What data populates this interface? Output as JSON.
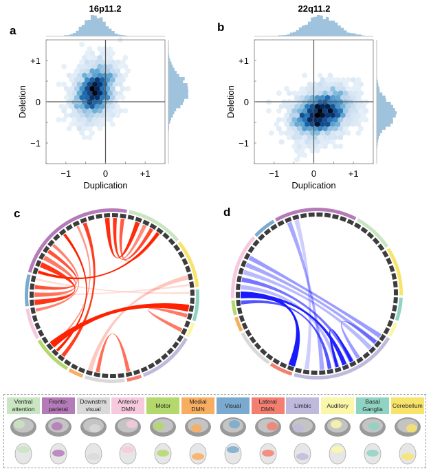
{
  "panel_labels": {
    "a": "a",
    "b": "b",
    "c": "c",
    "d": "d"
  },
  "chart_data": [
    {
      "type": "hexbin",
      "panel": "a",
      "title": "16p11.2",
      "xlabel": "Duplication",
      "ylabel": "Deletion",
      "xlim": [
        -1.5,
        1.5
      ],
      "ylim": [
        -1.5,
        1.5
      ],
      "xticks": [
        {
          "value": -1,
          "label": "−1"
        },
        {
          "value": 0,
          "label": "0"
        },
        {
          "value": 1,
          "label": "+1"
        }
      ],
      "yticks": [
        {
          "value": 1,
          "label": "+1"
        },
        {
          "value": 0,
          "label": "0"
        },
        {
          "value": -1,
          "label": "−1"
        }
      ],
      "distribution": {
        "n": 3000,
        "mean_x": -0.28,
        "mean_y": 0.27,
        "sd_x": 0.26,
        "sd_y": 0.34,
        "corr": 0.25
      },
      "marginal_histograms": true
    },
    {
      "type": "hexbin",
      "panel": "b",
      "title": "22q11.2",
      "xlabel": "Duplication",
      "ylabel": "Deletion",
      "xlim": [
        -1.5,
        1.5
      ],
      "ylim": [
        -1.5,
        1.5
      ],
      "xticks": [
        {
          "value": -1,
          "label": "−1"
        },
        {
          "value": 0,
          "label": "0"
        },
        {
          "value": 1,
          "label": "+1"
        }
      ],
      "yticks": [
        {
          "value": 1,
          "label": "+1"
        },
        {
          "value": 0,
          "label": "0"
        },
        {
          "value": -1,
          "label": "−1"
        }
      ],
      "distribution": {
        "n": 3000,
        "mean_x": 0.2,
        "mean_y": -0.27,
        "sd_x": 0.38,
        "sd_y": 0.3,
        "corr": 0.28
      },
      "marginal_histograms": true
    },
    {
      "type": "chord",
      "panel": "c",
      "color": "#ff2200",
      "networks": [
        {
          "name": "Fronto-parietal",
          "nodes": 15,
          "color": "#b57ab8"
        },
        {
          "name": "Ventral attention",
          "nodes": 7,
          "color": "#c9e5c1"
        },
        {
          "name": "Cerebellum",
          "nodes": 6,
          "color": "#f8e46a"
        },
        {
          "name": "Basal Ganglia",
          "nodes": 4,
          "color": "#8fd3c3"
        },
        {
          "name": "Auditory",
          "nodes": 2,
          "color": "#fbf7a8"
        },
        {
          "name": "Limbic",
          "nodes": 7,
          "color": "#bfbadb"
        },
        {
          "name": "Lateral DMN",
          "nodes": 2,
          "color": "#f47f71"
        },
        {
          "name": "Downstrm visual",
          "nodes": 5,
          "color": "#d9d9d9"
        },
        {
          "name": "Medial DMN",
          "nodes": 2,
          "color": "#f8ae60"
        },
        {
          "name": "Motor",
          "nodes": 5,
          "color": "#b3d86c"
        },
        {
          "name": "Anterior DMN",
          "nodes": 4,
          "color": "#f7c9de"
        },
        {
          "name": "Visual",
          "nodes": 4,
          "color": "#7aaacf"
        }
      ],
      "chords": [
        {
          "from": 12,
          "to": 16,
          "strength": 0.95,
          "width": 0.6
        },
        {
          "from": 13,
          "to": 17,
          "strength": 0.45,
          "width": 0.5
        },
        {
          "from": 13,
          "to": 18,
          "strength": 0.8,
          "width": 0.5
        },
        {
          "from": 14,
          "to": 19,
          "strength": 0.7,
          "width": 0.5
        },
        {
          "from": 0,
          "to": 19,
          "strength": 1.0,
          "width": 0.4
        },
        {
          "from": 6,
          "to": 52,
          "strength": 1.0,
          "width": 0.35
        },
        {
          "from": 9,
          "to": 51,
          "strength": 0.85,
          "width": 0.5
        },
        {
          "from": 8,
          "to": 53,
          "strength": 0.4,
          "width": 0.3
        },
        {
          "from": 53,
          "to": 30,
          "strength": 1.0,
          "width": 0.9
        },
        {
          "from": 47,
          "to": 26,
          "strength": 0.15,
          "width": 0.6
        },
        {
          "from": 46,
          "to": 42,
          "strength": 0.6,
          "width": 0.5
        },
        {
          "from": 31,
          "to": 33,
          "strength": 0.55,
          "width": 0.5
        },
        {
          "from": 1,
          "to": 59,
          "strength": 0.9,
          "width": 0.7
        },
        {
          "from": 2,
          "to": 60,
          "strength": 0.55,
          "width": 0.6
        },
        {
          "from": 3,
          "to": 61,
          "strength": 0.75,
          "width": 0.5
        },
        {
          "from": 4,
          "to": 58,
          "strength": 0.5,
          "width": 0.4
        },
        {
          "from": 60,
          "to": 27,
          "strength": 0.03,
          "width": 0.3
        },
        {
          "from": 62,
          "to": 28,
          "strength": 0.03,
          "width": 0.3
        }
      ]
    },
    {
      "type": "chord",
      "panel": "d",
      "color": "#1a1aff",
      "networks": [
        {
          "name": "Fronto-parietal",
          "nodes": 10,
          "color": "#b57ab8"
        },
        {
          "name": "Ventral attention",
          "nodes": 5,
          "color": "#c9e5c1"
        },
        {
          "name": "Cerebellum",
          "nodes": 6,
          "color": "#f8e46a"
        },
        {
          "name": "Basal Ganglia",
          "nodes": 3,
          "color": "#8fd3c3"
        },
        {
          "name": "Auditory",
          "nodes": 2,
          "color": "#fbf7a8"
        },
        {
          "name": "Limbic",
          "nodes": 13,
          "color": "#bfbadb"
        },
        {
          "name": "Lateral DMN",
          "nodes": 3,
          "color": "#f47f71"
        },
        {
          "name": "Downstrm visual",
          "nodes": 5,
          "color": "#d9d9d9"
        },
        {
          "name": "Medial DMN",
          "nodes": 2,
          "color": "#f8ae60"
        },
        {
          "name": "Motor",
          "nodes": 2,
          "color": "#b3d86c"
        },
        {
          "name": "Anterior DMN",
          "nodes": 8,
          "color": "#f7c9de"
        },
        {
          "name": "Visual",
          "nodes": 3,
          "color": "#7aaacf"
        }
      ],
      "chords": [
        {
          "from": 56,
          "to": 26,
          "strength": 0.35,
          "width": 0.6
        },
        {
          "from": 55,
          "to": 27,
          "strength": 0.3,
          "width": 0.6
        },
        {
          "from": 54,
          "to": 28,
          "strength": 0.2,
          "width": 0.6
        },
        {
          "from": 53,
          "to": 31,
          "strength": 0.55,
          "width": 0.6
        },
        {
          "from": 52,
          "to": 33,
          "strength": 0.2,
          "width": 0.6
        },
        {
          "from": 51,
          "to": 39,
          "strength": 1.0,
          "width": 0.9
        },
        {
          "from": 51,
          "to": 32,
          "strength": 0.95,
          "width": 0.6
        },
        {
          "from": 50,
          "to": 34,
          "strength": 0.7,
          "width": 0.5
        },
        {
          "from": 1,
          "to": 35,
          "strength": 0.3,
          "width": 0.6
        },
        {
          "from": 2,
          "to": 37,
          "strength": 0.1,
          "width": 0.6
        },
        {
          "from": 31,
          "to": 33,
          "strength": 0.95,
          "width": 0.4
        },
        {
          "from": 27,
          "to": 30,
          "strength": 0.35,
          "width": 0.5
        }
      ]
    }
  ],
  "legend": {
    "items": [
      {
        "lines": [
          "Ventral",
          "attention"
        ],
        "color": "#c9e5c1"
      },
      {
        "lines": [
          "Fronto-",
          "parietal"
        ],
        "color": "#b57ab8"
      },
      {
        "lines": [
          "Downstrm",
          "visual"
        ],
        "color": "#d9d9d9"
      },
      {
        "lines": [
          "Anterior",
          "DMN"
        ],
        "color": "#f7c9de"
      },
      {
        "lines": [
          "Motor"
        ],
        "color": "#b3d86c"
      },
      {
        "lines": [
          "Medial",
          "DMN"
        ],
        "color": "#f8ae60"
      },
      {
        "lines": [
          "Visual"
        ],
        "color": "#7aaacf"
      },
      {
        "lines": [
          "Lateral",
          "DMN"
        ],
        "color": "#f47f71"
      },
      {
        "lines": [
          "Limbic"
        ],
        "color": "#bfbadb"
      },
      {
        "lines": [
          "Auditory"
        ],
        "color": "#fbf7a8"
      },
      {
        "lines": [
          "Basal",
          "Ganglia"
        ],
        "color": "#8fd3c3"
      },
      {
        "lines": [
          "Cerebellum"
        ],
        "color": "#f8e46a"
      }
    ]
  }
}
